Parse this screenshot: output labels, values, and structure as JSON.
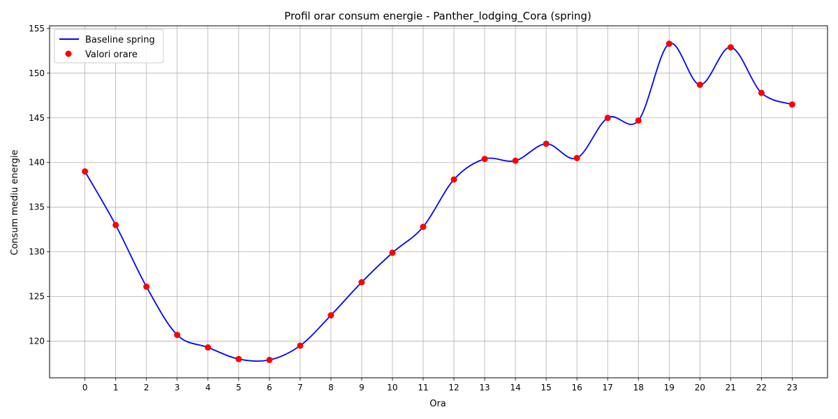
{
  "chart_data": {
    "type": "line",
    "title": "Profil orar consum energie - Panther_lodging_Cora (spring)",
    "xlabel": "Ora",
    "ylabel": "Consum mediu energie",
    "x": [
      0,
      1,
      2,
      3,
      4,
      5,
      6,
      7,
      8,
      9,
      10,
      11,
      12,
      13,
      14,
      15,
      16,
      17,
      18,
      19,
      20,
      21,
      22,
      23
    ],
    "xlim": [
      -1.15,
      24.15
    ],
    "ylim": [
      115.9,
      155.3
    ],
    "xticks": [
      0,
      1,
      2,
      3,
      4,
      5,
      6,
      7,
      8,
      9,
      10,
      11,
      12,
      13,
      14,
      15,
      16,
      17,
      18,
      19,
      20,
      21,
      22,
      23
    ],
    "yticks": [
      120,
      125,
      130,
      135,
      140,
      145,
      150,
      155
    ],
    "grid": true,
    "legend_position": "top-left",
    "series": [
      {
        "name": "Baseline spring",
        "kind": "line",
        "color": "#0000ff",
        "values": [
          139.0,
          133.0,
          126.1,
          120.7,
          119.3,
          118.0,
          117.9,
          119.5,
          122.9,
          126.6,
          129.9,
          132.8,
          138.1,
          140.4,
          140.2,
          142.1,
          140.5,
          145.0,
          144.7,
          153.3,
          148.7,
          152.9,
          147.8,
          146.5
        ]
      },
      {
        "name": "Valori orare",
        "kind": "scatter",
        "color": "#ff0000",
        "values": [
          139.0,
          133.0,
          126.1,
          120.7,
          119.3,
          118.0,
          117.9,
          119.5,
          122.9,
          126.6,
          129.9,
          132.8,
          138.1,
          140.4,
          140.2,
          142.1,
          140.5,
          145.0,
          144.7,
          153.3,
          148.7,
          152.9,
          147.8,
          146.5
        ]
      }
    ]
  }
}
